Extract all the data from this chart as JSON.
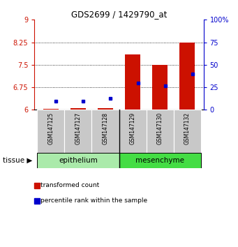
{
  "title": "GDS2699 / 1429790_at",
  "samples": [
    "GSM147125",
    "GSM147127",
    "GSM147128",
    "GSM147129",
    "GSM147130",
    "GSM147132"
  ],
  "red_values": [
    6.03,
    6.05,
    6.05,
    7.85,
    7.5,
    8.25
  ],
  "blue_percentiles": [
    10,
    10,
    13,
    30,
    27,
    40
  ],
  "ylim_left": [
    6,
    9
  ],
  "ylim_right": [
    0,
    100
  ],
  "yticks_left": [
    6,
    6.75,
    7.5,
    8.25,
    9
  ],
  "yticks_right": [
    0,
    25,
    50,
    75,
    100
  ],
  "ytick_labels_left": [
    "6",
    "6.75",
    "7.5",
    "8.25",
    "9"
  ],
  "ytick_labels_right": [
    "0",
    "25",
    "50",
    "75",
    "100%"
  ],
  "groups": [
    {
      "name": "epithelium",
      "indices": [
        0,
        1,
        2
      ],
      "color": "#AAEAAA"
    },
    {
      "name": "mesenchyme",
      "indices": [
        3,
        4,
        5
      ],
      "color": "#44DD44"
    }
  ],
  "tissue_label": "tissue",
  "legend_red": "transformed count",
  "legend_blue": "percentile rank within the sample",
  "bar_width": 0.55,
  "red_color": "#CC1100",
  "blue_color": "#0000CC",
  "sample_bg": "#C8C8C8",
  "base_value": 6.0
}
